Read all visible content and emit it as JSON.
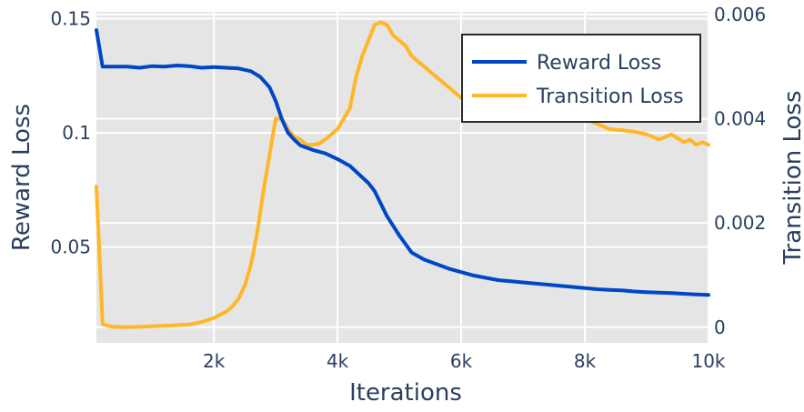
{
  "chart_data": {
    "type": "line",
    "xlabel": "Iterations",
    "ylabel_left": "Reward Loss",
    "ylabel_right": "Transition Loss",
    "xlim": [
      100,
      10000
    ],
    "ylim_left": [
      0.008,
      0.153
    ],
    "ylim_right": [
      -0.0003,
      0.00605
    ],
    "x_ticks": [
      {
        "value": 2000,
        "label": "2k"
      },
      {
        "value": 4000,
        "label": "4k"
      },
      {
        "value": 6000,
        "label": "6k"
      },
      {
        "value": 8000,
        "label": "8k"
      },
      {
        "value": 10000,
        "label": "10k"
      }
    ],
    "y_left_ticks": [
      {
        "value": 0.05,
        "label": "0.05"
      },
      {
        "value": 0.1,
        "label": "0.1"
      },
      {
        "value": 0.15,
        "label": "0.15"
      }
    ],
    "y_right_ticks": [
      {
        "value": 0,
        "label": "0"
      },
      {
        "value": 0.002,
        "label": "0.002"
      },
      {
        "value": 0.004,
        "label": "0.004"
      },
      {
        "value": 0.006,
        "label": "0.006"
      }
    ],
    "grid": true,
    "legend_position": "top-right",
    "plot_background": "#e5e5e5",
    "grid_color": "#ffffff",
    "series": [
      {
        "name": "Reward Loss",
        "axis": "left",
        "color": "#0047c8",
        "x": [
          100,
          200,
          400,
          600,
          800,
          1000,
          1200,
          1400,
          1600,
          1800,
          2000,
          2200,
          2400,
          2600,
          2750,
          2900,
          3000,
          3100,
          3200,
          3300,
          3400,
          3600,
          3800,
          4000,
          4200,
          4400,
          4500,
          4600,
          4800,
          5000,
          5200,
          5400,
          5600,
          5800,
          6000,
          6200,
          6400,
          6600,
          6800,
          7000,
          7200,
          7400,
          7600,
          7800,
          8000,
          8200,
          8400,
          8600,
          8800,
          9000,
          9200,
          9400,
          9600,
          9800,
          10000
        ],
        "values": [
          0.145,
          0.129,
          0.129,
          0.129,
          0.1285,
          0.1292,
          0.129,
          0.1295,
          0.1292,
          0.1285,
          0.1288,
          0.1285,
          0.1282,
          0.127,
          0.1245,
          0.12,
          0.114,
          0.106,
          0.1,
          0.097,
          0.0945,
          0.0925,
          0.091,
          0.0885,
          0.0855,
          0.0805,
          0.078,
          0.0745,
          0.0635,
          0.055,
          0.0475,
          0.0445,
          0.0425,
          0.0405,
          0.039,
          0.0375,
          0.0365,
          0.0355,
          0.035,
          0.0345,
          0.034,
          0.0335,
          0.033,
          0.0325,
          0.032,
          0.0315,
          0.0312,
          0.031,
          0.0305,
          0.0302,
          0.03,
          0.0298,
          0.0295,
          0.0292,
          0.029
        ]
      },
      {
        "name": "Transition Loss",
        "axis": "right",
        "color": "#ffb727",
        "x": [
          100,
          200,
          350,
          600,
          800,
          1000,
          1200,
          1400,
          1600,
          1800,
          2000,
          2200,
          2300,
          2400,
          2500,
          2600,
          2700,
          2800,
          2900,
          3000,
          3100,
          3200,
          3300,
          3400,
          3500,
          3600,
          3700,
          3800,
          3900,
          4000,
          4100,
          4200,
          4300,
          4400,
          4500,
          4600,
          4700,
          4800,
          4900,
          5000,
          5100,
          5200,
          5300,
          5400,
          5500,
          5600,
          5700,
          5800,
          5900,
          6000,
          8000,
          8200,
          8400,
          8600,
          8800,
          9000,
          9200,
          9400,
          9600,
          9700,
          9800,
          9900,
          10000
        ],
        "values": [
          0.0027,
          6e-05,
          1e-05,
          0.0,
          1e-05,
          2e-05,
          3e-05,
          4e-05,
          5e-05,
          0.0001,
          0.00018,
          0.0003,
          0.0004,
          0.00055,
          0.0008,
          0.0012,
          0.0018,
          0.0026,
          0.0033,
          0.004,
          0.004,
          0.0038,
          0.00365,
          0.0036,
          0.0035,
          0.0035,
          0.00352,
          0.0036,
          0.0037,
          0.0038,
          0.004,
          0.0042,
          0.0048,
          0.0052,
          0.0055,
          0.0058,
          0.00585,
          0.0058,
          0.0056,
          0.0055,
          0.0054,
          0.0052,
          0.0051,
          0.005,
          0.0049,
          0.0048,
          0.0047,
          0.0046,
          0.0045,
          0.0044,
          0.004,
          0.0039,
          0.0038,
          0.00378,
          0.00375,
          0.0037,
          0.0036,
          0.0037,
          0.00355,
          0.0036,
          0.0035,
          0.00355,
          0.0035
        ]
      }
    ]
  }
}
